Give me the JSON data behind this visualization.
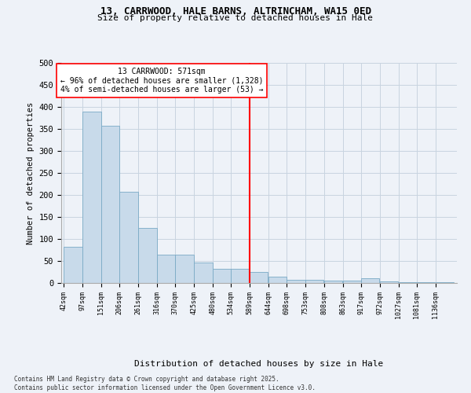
{
  "title_line1": "13, CARRWOOD, HALE BARNS, ALTRINCHAM, WA15 0ED",
  "title_line2": "Size of property relative to detached houses in Hale",
  "xlabel": "Distribution of detached houses by size in Hale",
  "ylabel": "Number of detached properties",
  "bar_color": "#c8daea",
  "bar_edge_color": "#7aaac5",
  "grid_color": "#c8d4e0",
  "background_color": "#eef2f8",
  "vline_x_idx": 9,
  "vline_color": "red",
  "annotation_title": "13 CARRWOOD: 571sqm",
  "annotation_line2": "← 96% of detached houses are smaller (1,328)",
  "annotation_line3": "4% of semi-detached houses are larger (53) →",
  "bins": [
    42,
    97,
    151,
    206,
    261,
    316,
    370,
    425,
    480,
    534,
    589,
    644,
    698,
    753,
    808,
    863,
    917,
    972,
    1027,
    1081,
    1136
  ],
  "values": [
    82,
    390,
    357,
    208,
    125,
    65,
    65,
    47,
    33,
    33,
    25,
    14,
    7,
    7,
    5,
    6,
    10,
    3,
    1,
    1,
    1
  ],
  "ylim": [
    0,
    500
  ],
  "yticks": [
    0,
    50,
    100,
    150,
    200,
    250,
    300,
    350,
    400,
    450,
    500
  ],
  "footer_line1": "Contains HM Land Registry data © Crown copyright and database right 2025.",
  "footer_line2": "Contains public sector information licensed under the Open Government Licence v3.0."
}
